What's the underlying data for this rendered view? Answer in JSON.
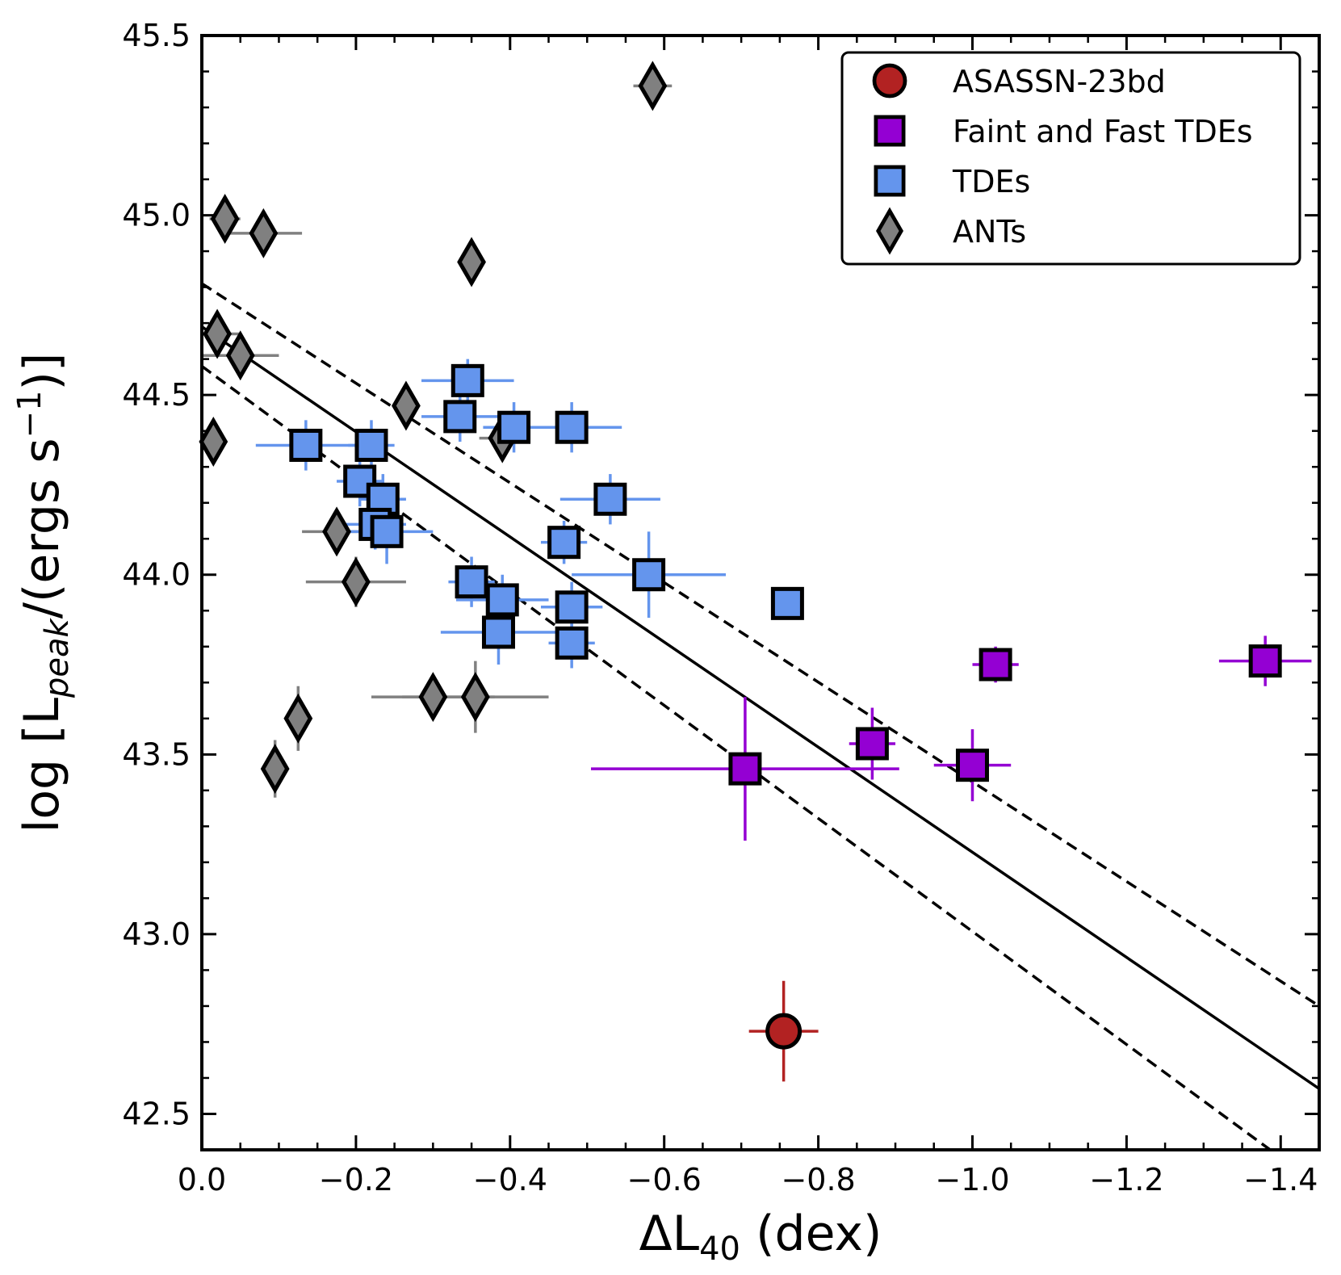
{
  "chart_data": {
    "type": "scatter",
    "xlabel": {
      "base": "ΔL",
      "sub": "40",
      "rest": " (dex)"
    },
    "ylabel": {
      "pre": "log [L",
      "sub": "peak",
      "mid": "/(ergs s",
      "sup": "−1",
      "post": ")]"
    },
    "xlim": [
      0.0,
      -1.45
    ],
    "ylim": [
      42.4,
      45.5
    ],
    "xticks": [
      0.0,
      -0.2,
      -0.4,
      -0.6,
      -0.8,
      -1.0,
      -1.2,
      -1.4
    ],
    "xtick_labels": [
      "0.0",
      "−0.2",
      "−0.4",
      "−0.6",
      "−0.8",
      "−1.0",
      "−1.2",
      "−1.4"
    ],
    "yticks": [
      42.5,
      43.0,
      43.5,
      44.0,
      44.5,
      45.0,
      45.5
    ],
    "ytick_labels": [
      "42.5",
      "43.0",
      "43.5",
      "44.0",
      "44.5",
      "45.0",
      "45.5"
    ],
    "legend_position": "top-right",
    "series": [
      {
        "name": "ANTs",
        "marker": "diamond",
        "color": "#808080",
        "errcolor": "#808080",
        "points": [
          {
            "x": -0.03,
            "y": 44.99,
            "xerr": 0.02,
            "yerr": 0.02
          },
          {
            "x": -0.08,
            "y": 44.95,
            "xerr": 0.05,
            "yerr": 0.02
          },
          {
            "x": -0.585,
            "y": 45.36,
            "xerr": 0.025,
            "yerr": 0.02
          },
          {
            "x": -0.35,
            "y": 44.87,
            "xerr": 0.01,
            "yerr": 0.02
          },
          {
            "x": -0.02,
            "y": 44.67,
            "xerr": 0.03,
            "yerr": 0.02
          },
          {
            "x": -0.05,
            "y": 44.61,
            "xerr": 0.05,
            "yerr": 0.02
          },
          {
            "x": -0.265,
            "y": 44.47,
            "xerr": 0.01,
            "yerr": 0.02
          },
          {
            "x": -0.39,
            "y": 44.38,
            "xerr": 0.03,
            "yerr": 0.02
          },
          {
            "x": -0.015,
            "y": 44.37,
            "xerr": 0.01,
            "yerr": 0.02
          },
          {
            "x": -0.175,
            "y": 44.12,
            "xerr": 0.045,
            "yerr": 0.02
          },
          {
            "x": -0.2,
            "y": 43.98,
            "xerr": 0.065,
            "yerr": 0.07
          },
          {
            "x": -0.3,
            "y": 43.66,
            "xerr": 0.08,
            "yerr": 0.02
          },
          {
            "x": -0.355,
            "y": 43.66,
            "xerr": 0.095,
            "yerr": 0.1
          },
          {
            "x": -0.125,
            "y": 43.6,
            "xerr": 0.01,
            "yerr": 0.09
          },
          {
            "x": -0.095,
            "y": 43.46,
            "xerr": 0.01,
            "yerr": 0.08
          }
        ]
      },
      {
        "name": "TDEs",
        "marker": "square",
        "color": "#6495ED",
        "errcolor": "#6495ED",
        "points": [
          {
            "x": -0.345,
            "y": 44.54,
            "xerr": 0.06,
            "yerr": 0.06
          },
          {
            "x": -0.335,
            "y": 44.44,
            "xerr": 0.05,
            "yerr": 0.07
          },
          {
            "x": -0.405,
            "y": 44.41,
            "xerr": 0.04,
            "yerr": 0.07
          },
          {
            "x": -0.48,
            "y": 44.41,
            "xerr": 0.065,
            "yerr": 0.07
          },
          {
            "x": -0.135,
            "y": 44.36,
            "xerr": 0.065,
            "yerr": 0.07
          },
          {
            "x": -0.22,
            "y": 44.36,
            "xerr": 0.03,
            "yerr": 0.07
          },
          {
            "x": -0.205,
            "y": 44.26,
            "xerr": 0.03,
            "yerr": 0.07
          },
          {
            "x": -0.235,
            "y": 44.21,
            "xerr": 0.03,
            "yerr": 0.07
          },
          {
            "x": -0.53,
            "y": 44.21,
            "xerr": 0.065,
            "yerr": 0.07
          },
          {
            "x": -0.225,
            "y": 44.14,
            "xerr": 0.04,
            "yerr": 0.07
          },
          {
            "x": -0.24,
            "y": 44.12,
            "xerr": 0.06,
            "yerr": 0.09
          },
          {
            "x": -0.47,
            "y": 44.09,
            "xerr": 0.03,
            "yerr": 0.06
          },
          {
            "x": -0.58,
            "y": 44.0,
            "xerr": 0.1,
            "yerr": 0.12
          },
          {
            "x": -0.35,
            "y": 43.98,
            "xerr": 0.03,
            "yerr": 0.07
          },
          {
            "x": -0.39,
            "y": 43.93,
            "xerr": 0.06,
            "yerr": 0.07
          },
          {
            "x": -0.48,
            "y": 43.91,
            "xerr": 0.04,
            "yerr": 0.07
          },
          {
            "x": -0.76,
            "y": 43.92,
            "xerr": 0.0,
            "yerr": 0.0
          },
          {
            "x": -0.385,
            "y": 43.84,
            "xerr": 0.075,
            "yerr": 0.09
          },
          {
            "x": -0.48,
            "y": 43.81,
            "xerr": 0.03,
            "yerr": 0.07
          }
        ]
      },
      {
        "name": "Faint and Fast TDEs",
        "marker": "square",
        "color": "#9400D3",
        "errcolor": "#9400D3",
        "points": [
          {
            "x": -0.705,
            "y": 43.46,
            "xerr": 0.2,
            "yerr": 0.2
          },
          {
            "x": -0.87,
            "y": 43.53,
            "xerr": 0.03,
            "yerr": 0.1
          },
          {
            "x": -1.0,
            "y": 43.47,
            "xerr": 0.05,
            "yerr": 0.1
          },
          {
            "x": -1.03,
            "y": 43.75,
            "xerr": 0.03,
            "yerr": 0.05
          },
          {
            "x": -1.38,
            "y": 43.76,
            "xerr": 0.06,
            "yerr": 0.07
          }
        ]
      },
      {
        "name": "ASASSN-23bd",
        "marker": "circle",
        "color": "#B22222",
        "errcolor": "#B22222",
        "points": [
          {
            "x": -0.755,
            "y": 42.73,
            "xerr": 0.045,
            "yerr": 0.14
          }
        ]
      }
    ],
    "legend_order": [
      "ASASSN-23bd",
      "Faint and Fast TDEs",
      "TDEs",
      "ANTs"
    ],
    "fit_lines": [
      {
        "style": "solid",
        "x": [
          0.0,
          -1.45
        ],
        "y": [
          44.69,
          42.57
        ]
      },
      {
        "style": "dashed",
        "x": [
          0.0,
          -1.45
        ],
        "y": [
          44.81,
          42.8
        ]
      },
      {
        "style": "dashed",
        "x": [
          0.0,
          -1.45
        ],
        "y": [
          44.58,
          42.3
        ]
      }
    ]
  }
}
